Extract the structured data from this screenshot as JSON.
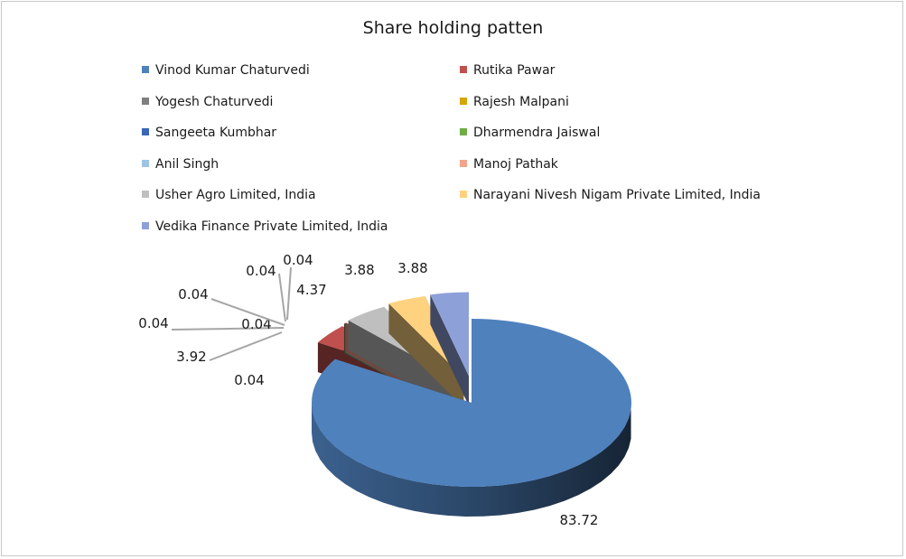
{
  "chart_data": {
    "type": "pie",
    "title": "Share holding patten",
    "legend_position": "top",
    "categories": [
      "Vinod Kumar Chaturvedi",
      "Rutika Pawar",
      "Yogesh Chaturvedi",
      "Rajesh Malpani",
      "Sangeeta Kumbhar",
      "Dharmendra Jaiswal",
      "Anil Singh",
      "Manoj Pathak",
      "Usher Agro Limited, India",
      "Narayani Nivesh Nigam Private Limited, India",
      "Vedika Finance Private Limited, India"
    ],
    "values": [
      83.72,
      3.92,
      0.04,
      0.04,
      0.04,
      0.04,
      0.04,
      0.04,
      4.37,
      3.88,
      3.88
    ],
    "value_labels": [
      "83.72",
      "3.92",
      "0.04",
      "0.04",
      "0.04",
      "0.04",
      "0.04",
      "0.04",
      "4.37",
      "3.88",
      "3.88"
    ],
    "colors": [
      "#4f81bd",
      "#c0504d",
      "#7f7f7f",
      "#d5a600",
      "#3a67b3",
      "#70ad47",
      "#9dc3e6",
      "#f2a38b",
      "#bfbfbf",
      "#ffd27f",
      "#8ea0d8"
    ]
  }
}
